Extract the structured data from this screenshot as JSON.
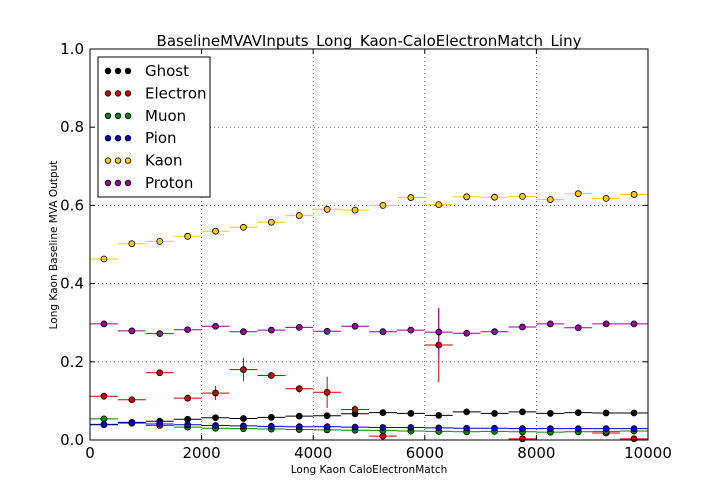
{
  "chart_data": {
    "type": "scatter",
    "title": "BaselineMVAVInputs_Long_Kaon-CaloElectronMatch_Liny",
    "xlabel": "Long Kaon CaloElectronMatch",
    "ylabel": "Long Kaon Baseline MVA Output",
    "xlim": [
      0,
      10000
    ],
    "ylim": [
      0.0,
      1.0
    ],
    "xticks": [
      "0",
      "2000",
      "4000",
      "6000",
      "8000",
      "10000"
    ],
    "yticks": [
      "0.0",
      "0.2",
      "0.4",
      "0.6",
      "0.8",
      "1.0"
    ],
    "grid": true,
    "legend_position": "top-left",
    "bin_width": 500,
    "x": [
      250,
      750,
      1250,
      1750,
      2250,
      2750,
      3250,
      3750,
      4250,
      4750,
      5250,
      5750,
      6250,
      6750,
      7250,
      7750,
      8250,
      8750,
      9250,
      9750
    ],
    "series": [
      {
        "name": "Ghost",
        "color": "#000000",
        "values": [
          0.04,
          0.045,
          0.048,
          0.053,
          0.057,
          0.055,
          0.058,
          0.061,
          0.062,
          0.067,
          0.07,
          0.068,
          0.063,
          0.072,
          0.068,
          0.072,
          0.068,
          0.07,
          0.069,
          0.069
        ],
        "errors": [
          0.002,
          0.002,
          0.002,
          0.002,
          0.002,
          0.002,
          0.002,
          0.002,
          0.002,
          0.002,
          0.002,
          0.002,
          0.002,
          0.002,
          0.002,
          0.002,
          0.002,
          0.002,
          0.002,
          0.002
        ]
      },
      {
        "name": "Electron",
        "color": "#cc0000",
        "values": [
          0.112,
          0.103,
          0.172,
          0.107,
          0.12,
          0.18,
          0.165,
          0.131,
          0.122,
          0.078,
          0.01,
          null,
          0.243,
          null,
          null,
          0.003,
          null,
          null,
          0.018,
          0.003
        ],
        "errors": [
          0.004,
          0.004,
          0.005,
          0.006,
          0.018,
          0.03,
          0.005,
          0.01,
          0.04,
          0.01,
          0.006,
          null,
          0.095,
          null,
          null,
          0.003,
          null,
          null,
          0.005,
          0.003
        ]
      },
      {
        "name": "Muon",
        "color": "#008800",
        "values": [
          0.054,
          0.043,
          0.037,
          0.033,
          0.03,
          0.029,
          0.028,
          0.027,
          0.026,
          0.025,
          0.024,
          0.023,
          0.022,
          0.021,
          0.022,
          0.021,
          0.02,
          0.021,
          0.022,
          0.023
        ],
        "errors": [
          0.002,
          0.002,
          0.002,
          0.002,
          0.002,
          0.002,
          0.002,
          0.002,
          0.002,
          0.002,
          0.002,
          0.002,
          0.002,
          0.002,
          0.002,
          0.002,
          0.002,
          0.002,
          0.002,
          0.002
        ]
      },
      {
        "name": "Pion",
        "color": "#0000cc",
        "values": [
          0.039,
          0.044,
          0.041,
          0.039,
          0.037,
          0.036,
          0.035,
          0.034,
          0.034,
          0.033,
          0.032,
          0.032,
          0.031,
          0.03,
          0.03,
          0.029,
          0.029,
          0.029,
          0.029,
          0.029
        ],
        "errors": [
          0.001,
          0.001,
          0.001,
          0.001,
          0.001,
          0.001,
          0.001,
          0.001,
          0.001,
          0.001,
          0.001,
          0.001,
          0.001,
          0.001,
          0.001,
          0.001,
          0.001,
          0.001,
          0.001,
          0.001
        ]
      },
      {
        "name": "Kaon",
        "color": "#ffcc00",
        "values": [
          0.463,
          0.502,
          0.508,
          0.521,
          0.534,
          0.544,
          0.557,
          0.574,
          0.59,
          0.588,
          0.6,
          0.62,
          0.602,
          0.622,
          0.621,
          0.623,
          0.615,
          0.63,
          0.618,
          0.628
        ],
        "errors": [
          0.003,
          0.003,
          0.003,
          0.003,
          0.003,
          0.003,
          0.003,
          0.003,
          0.003,
          0.003,
          0.003,
          0.003,
          0.003,
          0.003,
          0.003,
          0.003,
          0.003,
          0.003,
          0.003,
          0.003
        ]
      },
      {
        "name": "Proton",
        "color": "#990099",
        "values": [
          0.297,
          0.279,
          0.272,
          0.282,
          0.291,
          0.277,
          0.281,
          0.288,
          0.278,
          0.291,
          0.277,
          0.281,
          0.276,
          0.273,
          0.277,
          0.289,
          0.297,
          0.287,
          0.297,
          0.297
        ],
        "errors": [
          0.003,
          0.003,
          0.003,
          0.003,
          0.003,
          0.003,
          0.003,
          0.003,
          0.003,
          0.003,
          0.003,
          0.003,
          0.06,
          0.003,
          0.003,
          0.003,
          0.003,
          0.003,
          0.003,
          0.003
        ]
      }
    ]
  }
}
